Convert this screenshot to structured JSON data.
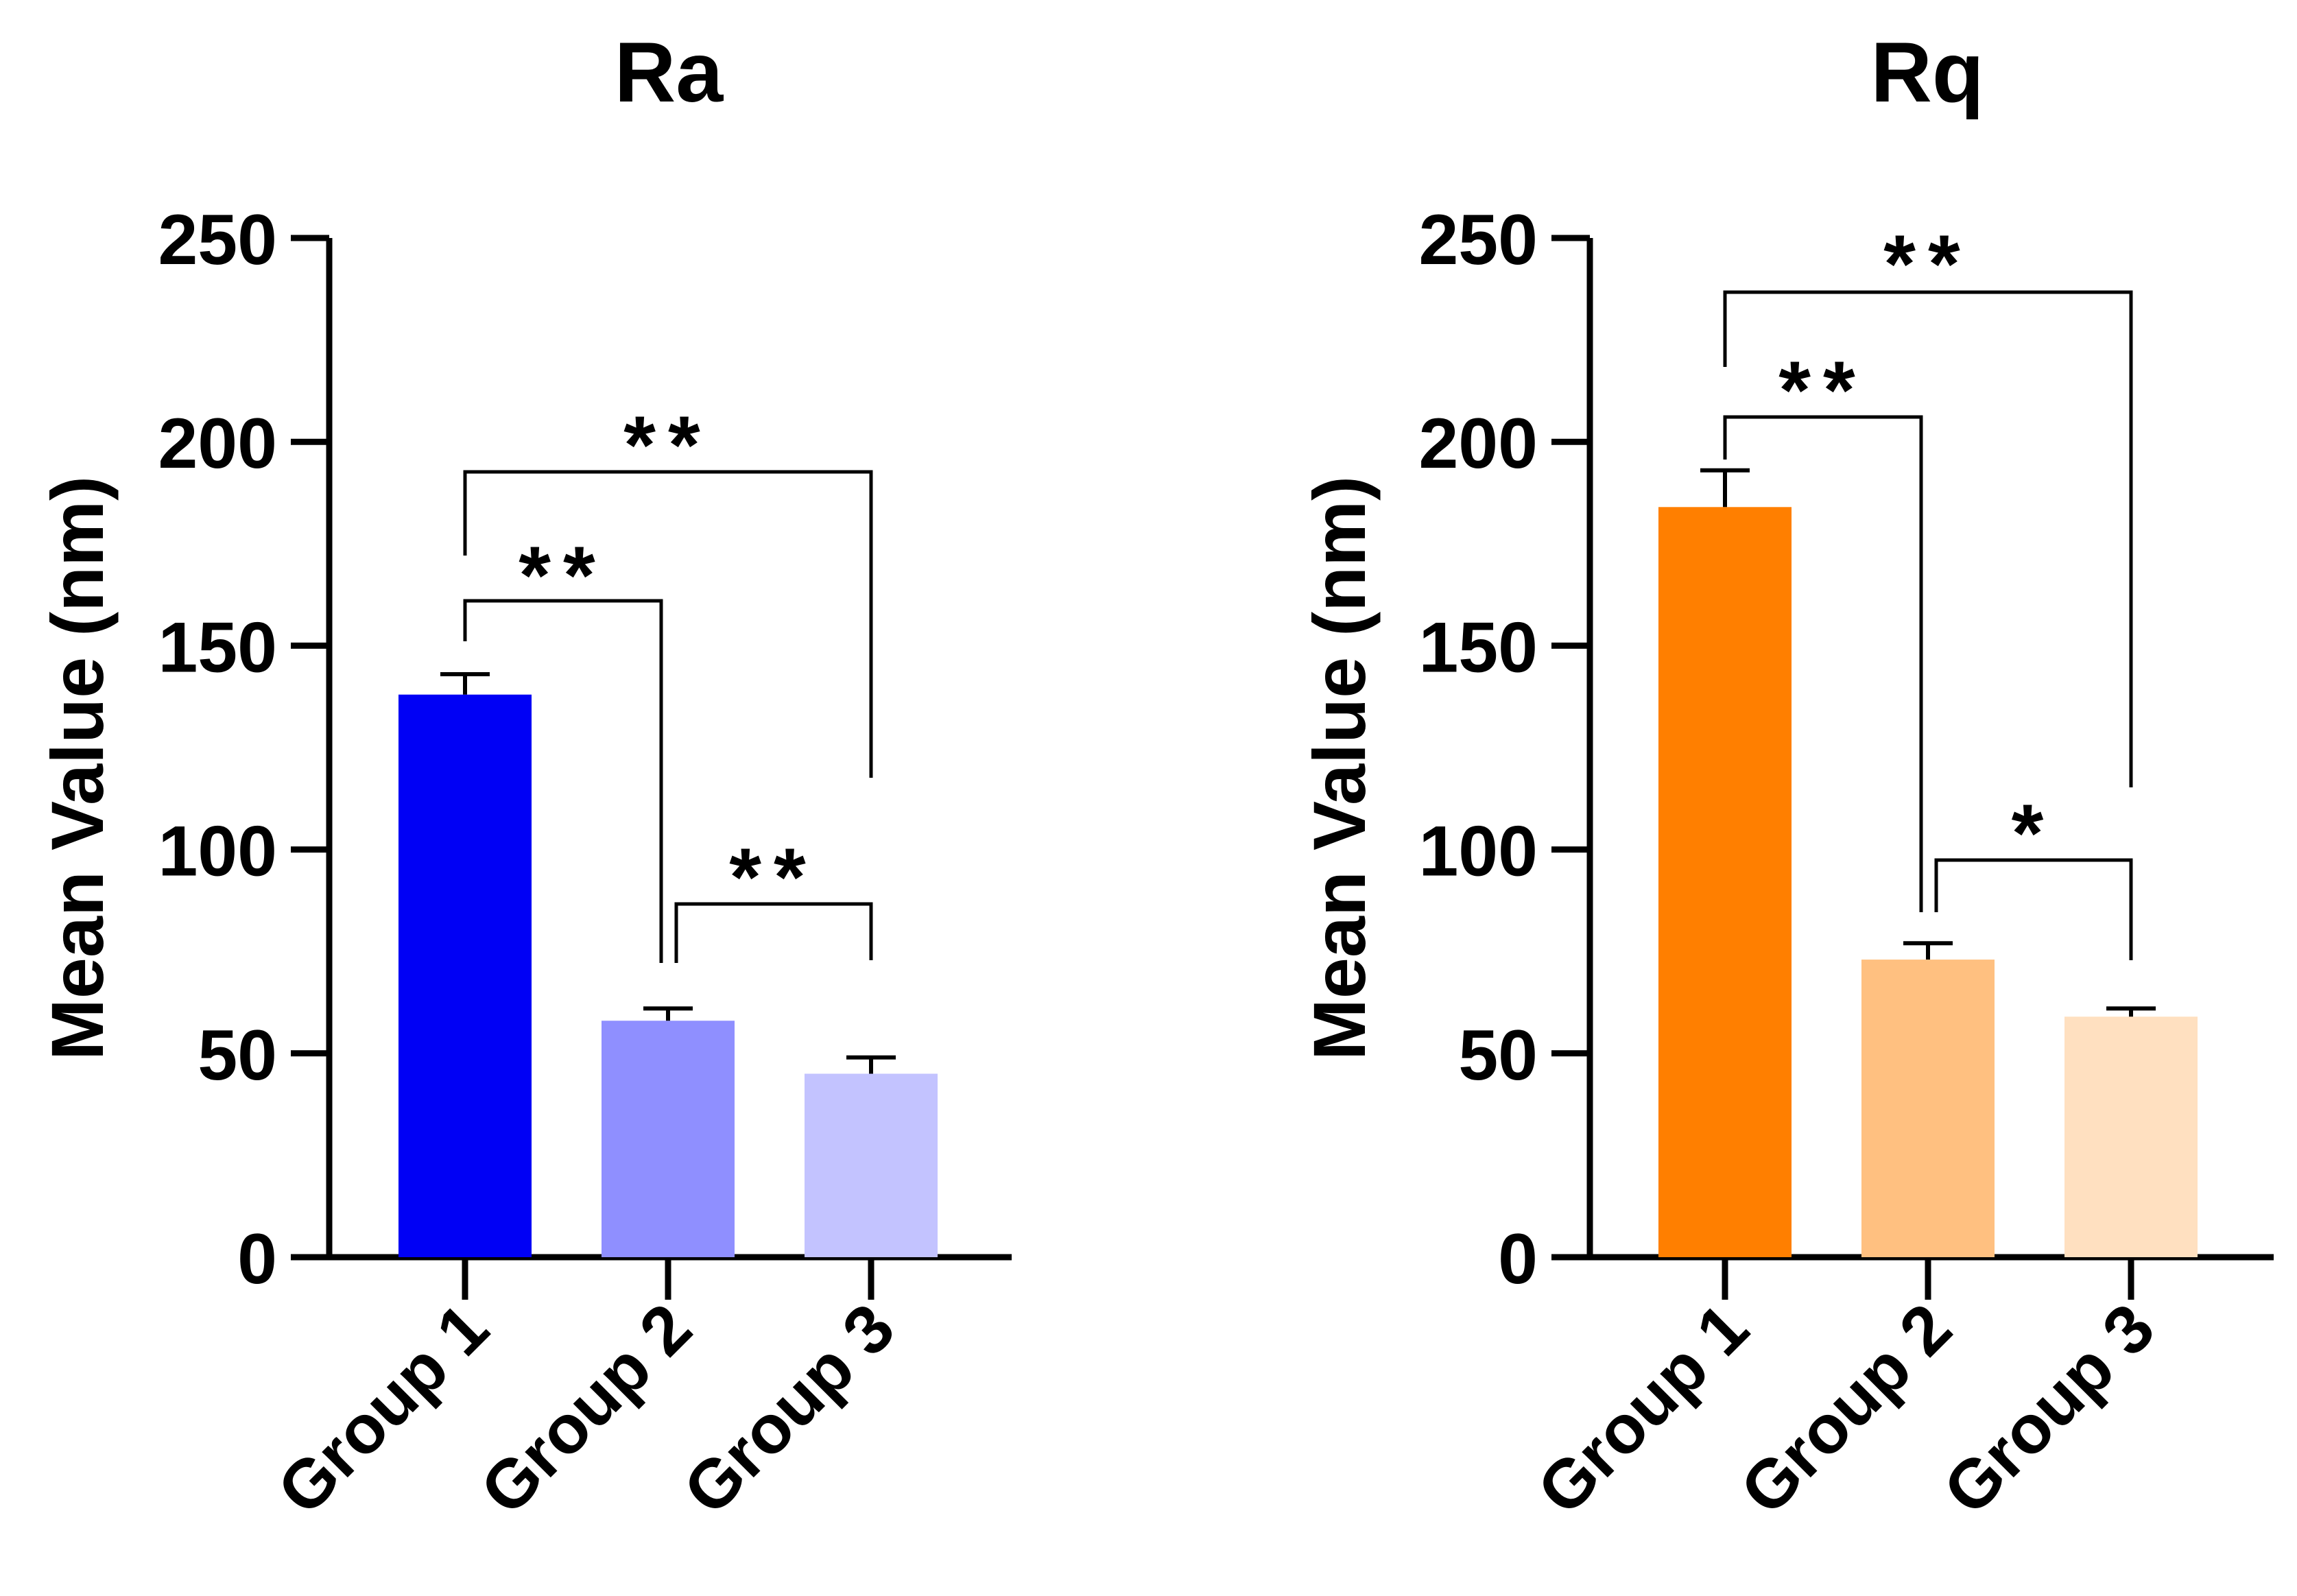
{
  "chart_data": [
    {
      "type": "bar",
      "title": "Ra",
      "ylabel": "Mean Value (nm)",
      "xlabel": "",
      "ylim": [
        0,
        250
      ],
      "yticks": [
        0,
        50,
        100,
        150,
        200,
        250
      ],
      "categories": [
        "Group 1",
        "Group 2",
        "Group 3"
      ],
      "values": [
        138,
        58,
        45
      ],
      "error_upper": [
        5,
        3,
        4
      ],
      "colors": [
        "#0000F5",
        "#8F8FFF",
        "#C3C3FF"
      ],
      "significance": [
        {
          "from": 1,
          "to": 2,
          "label": "**"
        },
        {
          "from": 0,
          "to": 1,
          "label": "**"
        },
        {
          "from": 0,
          "to": 2,
          "label": "**"
        }
      ]
    },
    {
      "type": "bar",
      "title": "Rq",
      "ylabel": "Mean Value (nm)",
      "xlabel": "",
      "ylim": [
        0,
        250
      ],
      "yticks": [
        0,
        50,
        100,
        150,
        200,
        250
      ],
      "categories": [
        "Group 1",
        "Group 2",
        "Group 3"
      ],
      "values": [
        184,
        73,
        59
      ],
      "error_upper": [
        9,
        4,
        2
      ],
      "colors": [
        "#FF7F00",
        "#FFC080",
        "#FFE0C0"
      ],
      "significance": [
        {
          "from": 1,
          "to": 2,
          "label": "*"
        },
        {
          "from": 0,
          "to": 1,
          "label": "**"
        },
        {
          "from": 0,
          "to": 2,
          "label": "**"
        }
      ]
    }
  ]
}
